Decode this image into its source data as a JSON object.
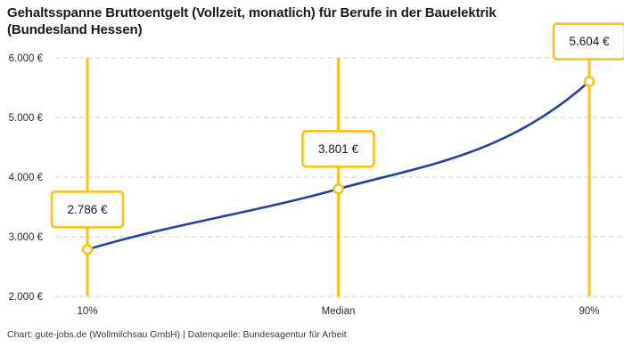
{
  "footer": "Chart: gute-jobs.de (Wollmilchsau GmbH) | Datenquelle: Bundesagentur für Arbeit",
  "chart_data": {
    "type": "line",
    "title": "Gehaltsspanne Bruttoentgelt (Vollzeit, monatlich) für Berufe in der Bauelektrik (Bundesland Hessen)",
    "categories": [
      "10%",
      "Median",
      "90%"
    ],
    "values": [
      2786,
      3801,
      5604
    ],
    "value_labels": [
      "2.786 €",
      "3.801 €",
      "5.604 €"
    ],
    "xlabel": "",
    "ylabel": "",
    "ylim": [
      2000,
      6000
    ],
    "y_ticks": [
      {
        "value": 2000,
        "label": "2.000 €"
      },
      {
        "value": 3000,
        "label": "3.000 €"
      },
      {
        "value": 4000,
        "label": "4.000 €"
      },
      {
        "value": 5000,
        "label": "5.000 €"
      },
      {
        "value": 6000,
        "label": "6.000 €"
      }
    ],
    "grid": "horizontal-dashed",
    "legend": "none",
    "annotation_style": "value boxes above each percentile marker on vertical highlight lines",
    "colors": {
      "line": "#2441A5",
      "highlight": "#FCC21C",
      "marker_fill": "#FFFFFF",
      "box_fill": "#FFFFFF",
      "grid": "#CBCBCB",
      "text": "#1A1A1A",
      "axis_text": "#2B2B2B"
    }
  }
}
